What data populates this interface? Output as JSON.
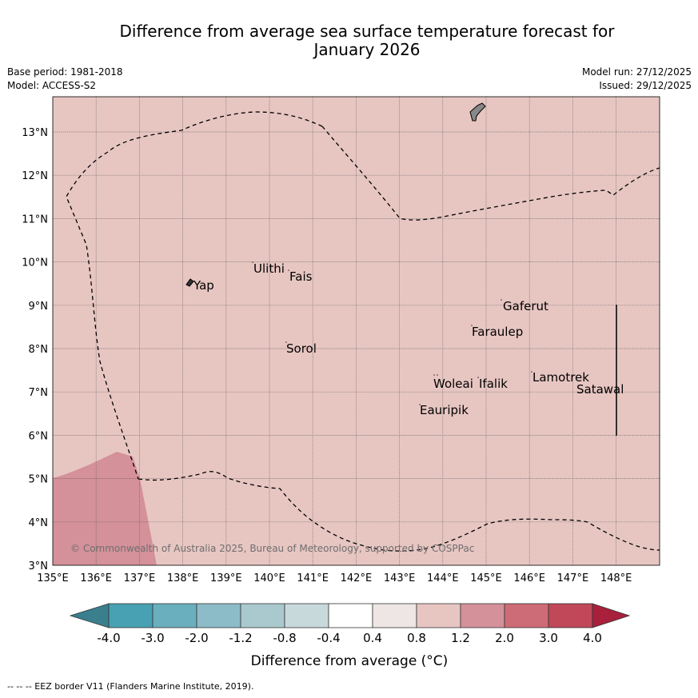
{
  "title": {
    "line1": "Difference from average sea surface temperature forecast for",
    "line2": "January 2026"
  },
  "meta": {
    "base_period": "Base period: 1981-2018",
    "model": "Model: ACCESS-S2",
    "model_run": "Model run: 27/12/2025",
    "issued": "Issued: 29/12/2025"
  },
  "map": {
    "lon_labels": [
      "135°E",
      "136°E",
      "137°E",
      "138°E",
      "139°E",
      "140°E",
      "141°E",
      "142°E",
      "143°E",
      "144°E",
      "145°E",
      "146°E",
      "147°E",
      "148°E"
    ],
    "lat_labels": [
      "3°N",
      "4°N",
      "5°N",
      "6°N",
      "7°N",
      "8°N",
      "9°N",
      "10°N",
      "11°N",
      "12°N",
      "13°N"
    ],
    "places": {
      "yap": "Yap",
      "ulithi": "Ulithi",
      "fais": "Fais",
      "gaferut": "Gaferut",
      "faraulep": "Faraulep",
      "sorol": "Sorol",
      "lamotrek": "Lamotrek",
      "satawal": "Satawal",
      "woleai": "Woleai",
      "ifalik": "Ifalik",
      "eauripik": "Eauripik"
    },
    "copyright": "© Commonwealth of Australia 2025, Bureau of Meteorology, supported by COSPPac",
    "background_color": "#e7c6c2",
    "anomaly_patch_color": "#d4919a"
  },
  "colorbar": {
    "ticks": [
      "-4.0",
      "-3.0",
      "-2.0",
      "-1.2",
      "-0.8",
      "-0.4",
      "0.4",
      "0.8",
      "1.2",
      "2.0",
      "3.0",
      "4.0"
    ],
    "colors": [
      "#3a7f8e",
      "#48a0b3",
      "#6aafbe",
      "#8cbcc7",
      "#aac9cf",
      "#c8d9dc",
      "#ffffff",
      "#ede6e4",
      "#e7c6c2",
      "#d4919a",
      "#cd6c77",
      "#c04858",
      "#a8203c"
    ],
    "label": "Difference from average (°C)"
  },
  "footer": "--  --  -- EEZ border V11 (Flanders Marine Institute, 2019)."
}
